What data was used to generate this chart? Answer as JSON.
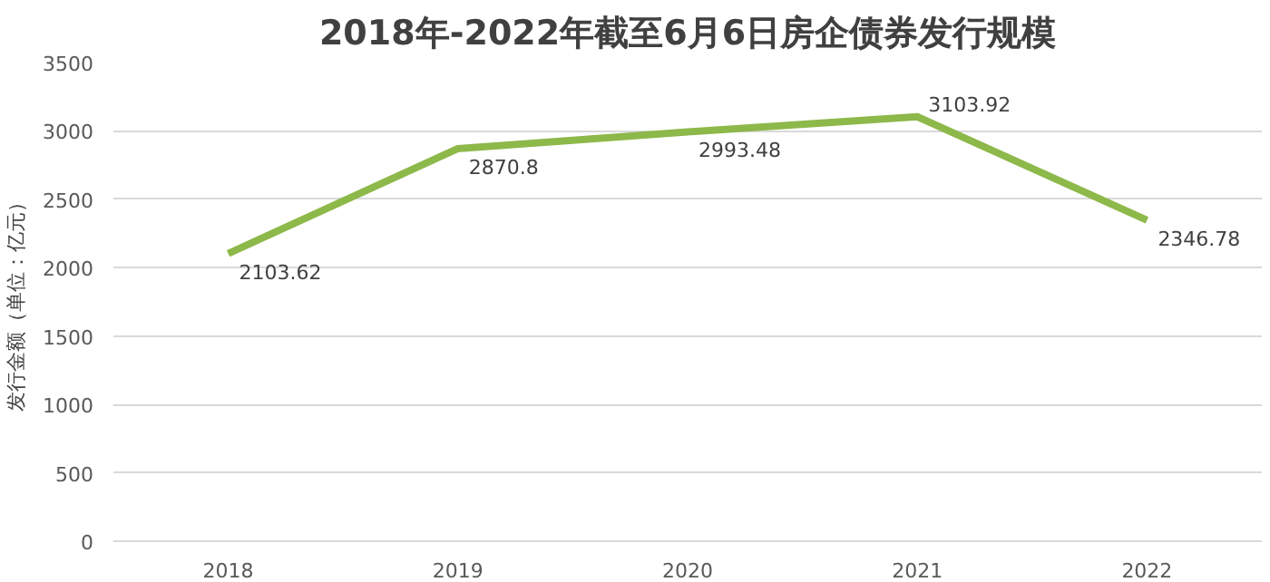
{
  "chart_data": {
    "type": "line",
    "title": "2018年-2022年截至6月6日房企债券发行规模",
    "ylabel": "发行金额（单位：亿元）",
    "categories": [
      "2018",
      "2019",
      "2020",
      "2021",
      "2022"
    ],
    "series": [
      {
        "color": "#8db84a",
        "values": [
          2103.62,
          2870.8,
          2993.48,
          3103.92,
          2346.78
        ]
      }
    ],
    "ylim": [
      0,
      3500
    ],
    "yticks": [
      0,
      500,
      1000,
      1500,
      2000,
      2500,
      3000,
      3500
    ],
    "grid": "y",
    "data_labels": true,
    "marker": "none",
    "line_style": "solid"
  }
}
